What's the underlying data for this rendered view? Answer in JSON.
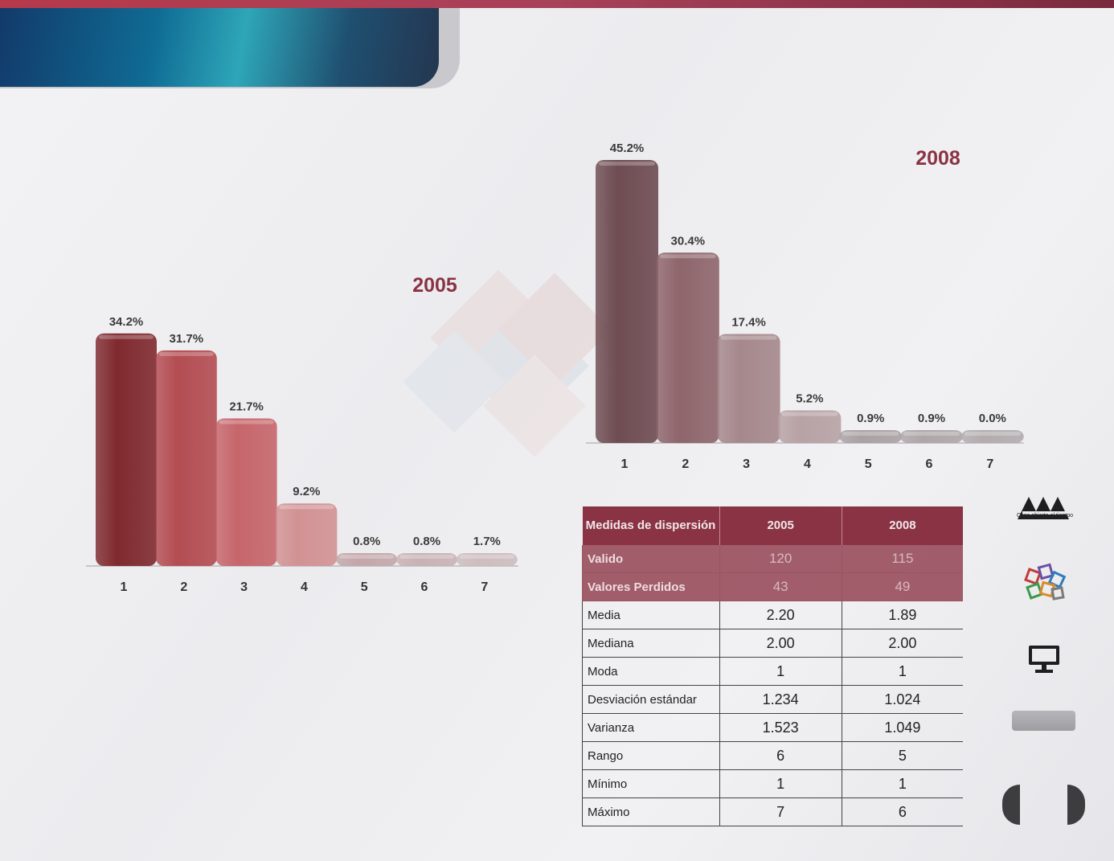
{
  "chart_data": [
    {
      "type": "bar",
      "title": "2005",
      "categories": [
        "1",
        "2",
        "3",
        "4",
        "5",
        "6",
        "7"
      ],
      "values": [
        34.2,
        31.7,
        21.7,
        9.2,
        0.8,
        0.8,
        1.7
      ],
      "value_labels": [
        "34.2%",
        "31.7%",
        "21.7%",
        "9.2%",
        "0.8%",
        "0.8%",
        "1.7%"
      ],
      "ylim": [
        0,
        35
      ],
      "colors": [
        "#7f2a2f",
        "#b34d52",
        "#c6666b",
        "#d29294",
        "#c3a7aa",
        "#c9b2b5",
        "#cdbdbf"
      ]
    },
    {
      "type": "bar",
      "title": "2008",
      "categories": [
        "1",
        "2",
        "3",
        "4",
        "5",
        "6",
        "7"
      ],
      "values": [
        45.2,
        30.4,
        17.4,
        5.2,
        0.9,
        0.9,
        0.0
      ],
      "value_labels": [
        "45.2%",
        "30.4%",
        "17.4%",
        "5.2%",
        "0.9%",
        "0.9%",
        "0.0%"
      ],
      "ylim": [
        0,
        45.2
      ],
      "colors": [
        "#6e4c52",
        "#8e666c",
        "#a5888c",
        "#b7a2a5",
        "#aaa1a3",
        "#aea6a8",
        "#b3acae"
      ]
    }
  ],
  "table": {
    "headers": [
      "Medidas  de dispersión",
      "2005",
      "2008"
    ],
    "rows": [
      {
        "label": "Valido",
        "v2005": "120",
        "v2008": "115"
      },
      {
        "label": "Valores Perdidos",
        "v2005": "43",
        "v2008": "49"
      },
      {
        "label": "Media",
        "v2005": "2.20",
        "v2008": "1.89"
      },
      {
        "label": "Mediana",
        "v2005": "2.00",
        "v2008": "2.00"
      },
      {
        "label": "Moda",
        "v2005": "1",
        "v2008": "1"
      },
      {
        "label": "Desviación estándar",
        "v2005": "1.234",
        "v2008": "1.024"
      },
      {
        "label": "Varianza",
        "v2005": "1.523",
        "v2008": "1.049"
      },
      {
        "label": "Rango",
        "v2005": "6",
        "v2008": "5"
      },
      {
        "label": "Mínimo",
        "v2005": "1",
        "v2008": "1"
      },
      {
        "label": "Máximo",
        "v2005": "7",
        "v2008": "6"
      }
    ]
  },
  "sidebar": {
    "logo_caption": "Casa abierta al tiempo",
    "icons": [
      "uam-logo-icon",
      "colored-squares-icon",
      "monitor-icon"
    ]
  },
  "colors": {
    "top_bar": "#b63a4a",
    "header_panel": "#0f6b94",
    "table_header": "#8a3344",
    "year_label": "#8a3344"
  }
}
